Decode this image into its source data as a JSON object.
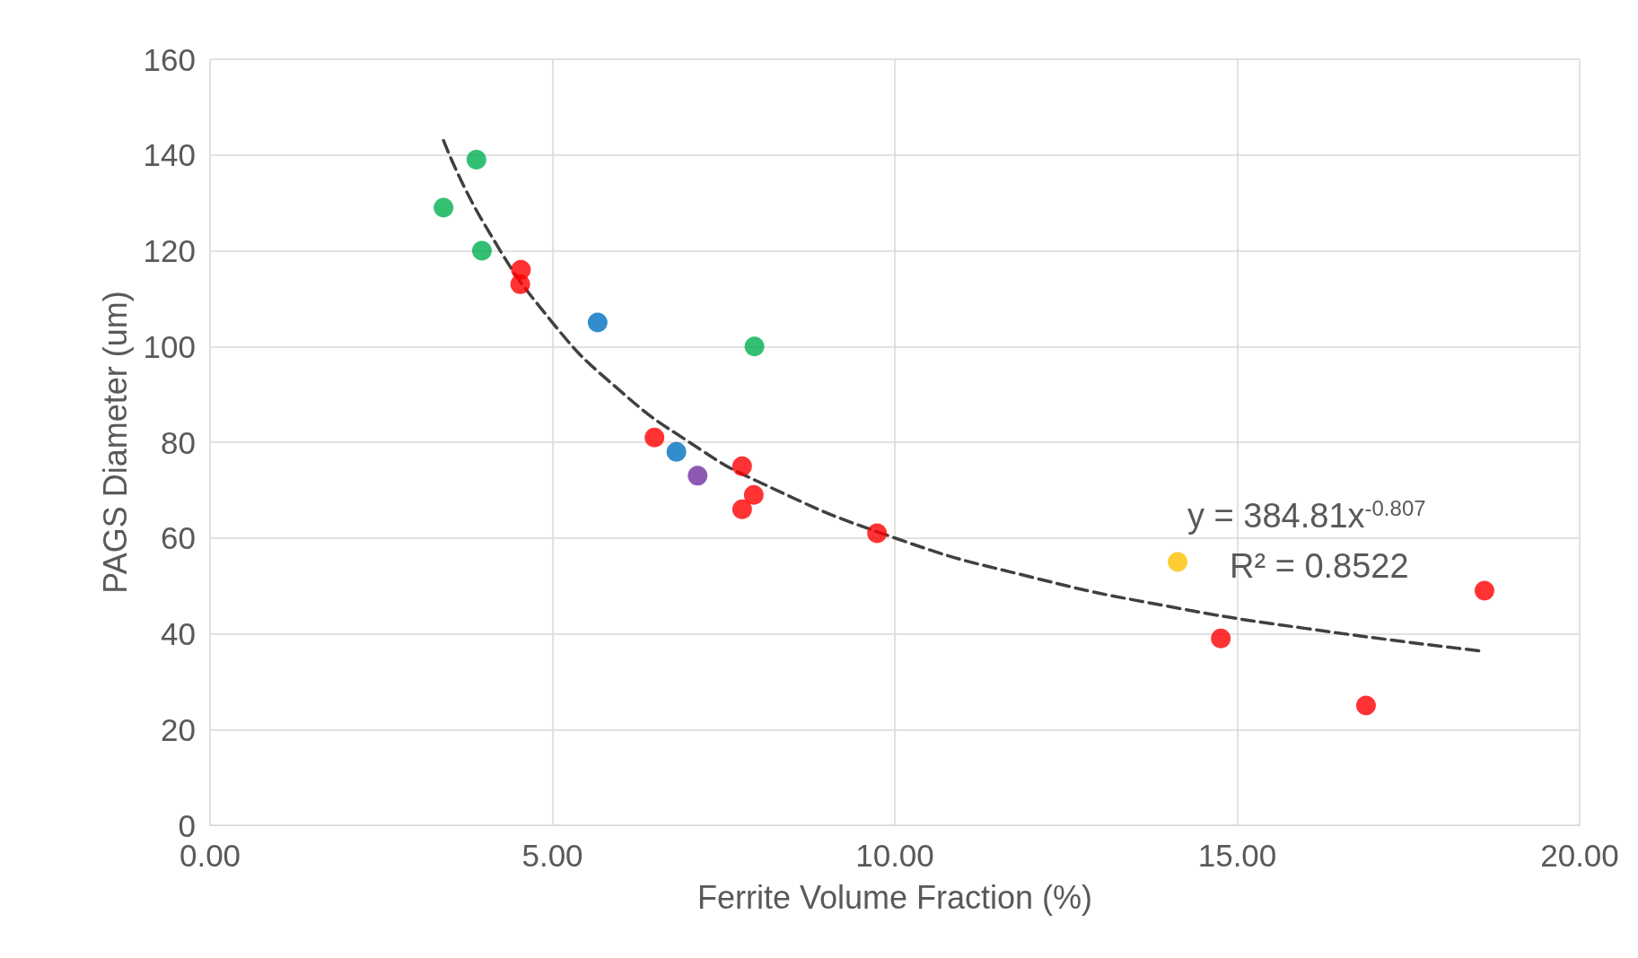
{
  "chart_data": {
    "type": "scatter",
    "xlabel": "Ferrite Volume Fraction (%)",
    "ylabel": "PAGS Diameter (um)",
    "xlim": [
      0,
      20
    ],
    "xticks": [
      {
        "value": 0,
        "label": "0.00"
      },
      {
        "value": 5,
        "label": "5.00"
      },
      {
        "value": 10,
        "label": "10.00"
      },
      {
        "value": 15,
        "label": "15.00"
      },
      {
        "value": 20,
        "label": "20.00"
      }
    ],
    "ylim": [
      0,
      160
    ],
    "yticks": [
      0,
      20,
      40,
      60,
      80,
      100,
      120,
      140,
      160
    ],
    "grid": true,
    "marker": "circle",
    "series": [
      {
        "color": "#00b050",
        "x": [
          3.41,
          3.89,
          3.97,
          7.95
        ],
        "values": [
          129,
          139,
          120,
          100
        ]
      },
      {
        "color": "#ff0000",
        "x": [
          4.54,
          4.53,
          6.49,
          7.77,
          7.94,
          7.77,
          9.74,
          14.76,
          16.88,
          18.61
        ],
        "values": [
          116,
          113,
          81,
          75,
          69,
          66,
          61,
          39,
          25,
          49
        ]
      },
      {
        "color": "#0070c0",
        "x": [
          5.66,
          6.81
        ],
        "values": [
          105,
          78
        ]
      },
      {
        "color": "#7030a0",
        "x": [
          7.12
        ],
        "values": [
          73
        ]
      },
      {
        "color": "#ffc000",
        "x": [
          14.13
        ],
        "values": [
          55
        ]
      },
      {
        "type": "line",
        "color": "#404040",
        "line_style": "dashed",
        "marker": "none",
        "x": [
          3.41,
          4,
          5,
          6,
          7,
          8,
          10,
          12,
          14,
          16,
          18.61
        ],
        "values": [
          143,
          125.7,
          105,
          90.6,
          80,
          71.8,
          60,
          51.8,
          45.7,
          41.1,
          36.3
        ]
      }
    ],
    "annotations": [
      "y = 384.81x$^{-0.807}$",
      "R² = 0.8522"
    ]
  }
}
